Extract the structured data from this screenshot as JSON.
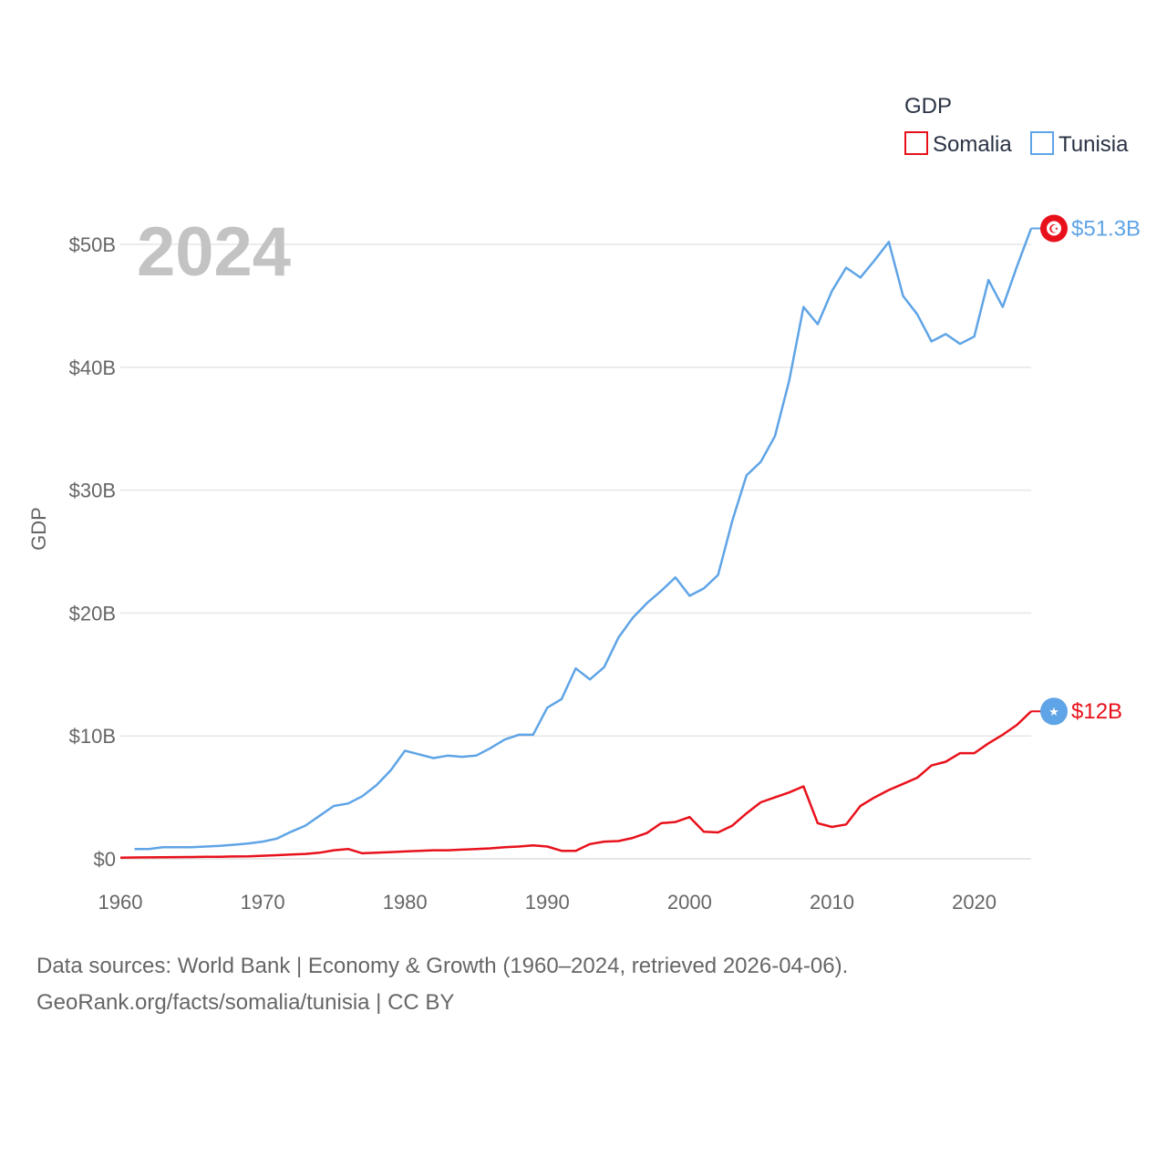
{
  "chart_data": {
    "type": "line",
    "title": "",
    "xlabel": "",
    "ylabel": "GDP",
    "xlim": [
      1960,
      2024
    ],
    "ylim": [
      0,
      50
    ],
    "y_unit": "billions USD",
    "x_ticks": [
      1960,
      1970,
      1980,
      1990,
      2000,
      2010,
      2020
    ],
    "x_tick_labels": [
      "1960",
      "1970",
      "1980",
      "1990",
      "2000",
      "2010",
      "2020"
    ],
    "y_ticks": [
      0,
      10,
      20,
      30,
      40,
      50
    ],
    "y_tick_labels": [
      "$0",
      "$10B",
      "$20B",
      "$30B",
      "$40B",
      "$50B"
    ],
    "grid": true,
    "legend_title": "GDP",
    "legend_position": "top-right",
    "year_label": "2024",
    "x": [
      1960,
      1961,
      1962,
      1963,
      1964,
      1965,
      1966,
      1967,
      1968,
      1969,
      1970,
      1971,
      1972,
      1973,
      1974,
      1975,
      1976,
      1977,
      1978,
      1979,
      1980,
      1981,
      1982,
      1983,
      1984,
      1985,
      1986,
      1987,
      1988,
      1989,
      1990,
      1991,
      1992,
      1993,
      1994,
      1995,
      1996,
      1997,
      1998,
      1999,
      2000,
      2001,
      2002,
      2003,
      2004,
      2005,
      2006,
      2007,
      2008,
      2009,
      2010,
      2011,
      2012,
      2013,
      2014,
      2015,
      2016,
      2017,
      2018,
      2019,
      2020,
      2021,
      2022,
      2023,
      2024
    ],
    "series": [
      {
        "name": "Somalia",
        "color": "#e8111b",
        "end_label": "$12B",
        "flag_symbol": "★",
        "values": [
          0.1,
          0.11,
          0.12,
          0.13,
          0.14,
          0.15,
          0.16,
          0.17,
          0.19,
          0.2,
          0.25,
          0.3,
          0.35,
          0.4,
          0.5,
          0.7,
          0.8,
          0.45,
          0.5,
          0.55,
          0.6,
          0.65,
          0.7,
          0.7,
          0.75,
          0.8,
          0.85,
          0.95,
          1.0,
          1.1,
          1.0,
          0.65,
          0.65,
          1.2,
          1.4,
          1.45,
          1.7,
          2.1,
          2.9,
          3.0,
          3.4,
          2.2,
          2.15,
          2.7,
          3.7,
          4.6,
          5.0,
          5.4,
          5.9,
          2.9,
          2.6,
          2.8,
          4.3,
          5.0,
          5.6,
          6.1,
          6.6,
          7.6,
          7.9,
          8.6,
          8.6,
          9.4,
          10.1,
          10.9,
          12.0
        ]
      },
      {
        "name": "Tunisia",
        "color": "#5fa4e6",
        "end_label": "$51.3B",
        "flag_symbol": "☪",
        "values": [
          null,
          0.8,
          0.8,
          0.95,
          0.95,
          0.95,
          1.0,
          1.05,
          1.15,
          1.25,
          1.4,
          1.65,
          2.2,
          2.7,
          3.5,
          4.3,
          4.5,
          5.1,
          6.0,
          7.2,
          8.8,
          8.5,
          8.2,
          8.4,
          8.3,
          8.4,
          9.0,
          9.7,
          10.1,
          10.1,
          12.3,
          13.0,
          15.5,
          14.6,
          15.6,
          18.0,
          19.6,
          20.8,
          21.8,
          22.9,
          21.4,
          22.0,
          23.1,
          27.5,
          31.2,
          32.3,
          34.4,
          38.9,
          44.9,
          43.5,
          46.2,
          48.1,
          47.3,
          48.7,
          50.2,
          45.8,
          44.3,
          42.1,
          42.7,
          41.9,
          42.5,
          47.1,
          44.9,
          48.2,
          51.3
        ]
      }
    ]
  },
  "footer": {
    "line1": "Data sources: World Bank | Economy & Growth (1960–2024, retrieved 2026-04-06).",
    "line2": "GeoRank.org/facts/somalia/tunisia | CC BY"
  }
}
